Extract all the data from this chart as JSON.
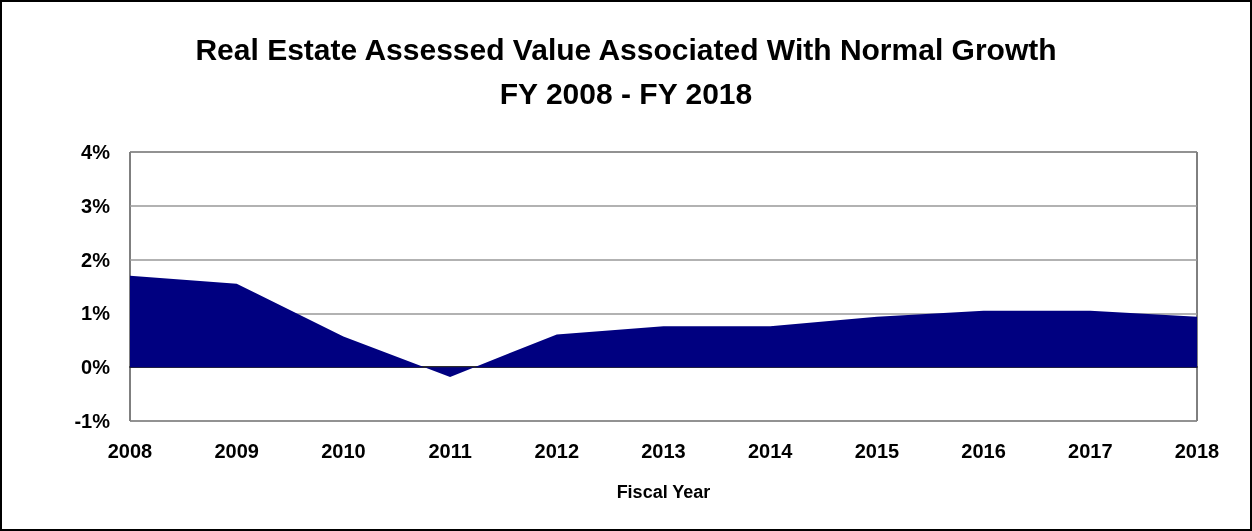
{
  "chart_data": {
    "type": "area",
    "title": "Real Estate Assessed Value Associated With Normal Growth\nFY 2008 - FY 2018",
    "xlabel": "Fiscal Year",
    "categories": [
      "2008",
      "2009",
      "2010",
      "2011",
      "2012",
      "2013",
      "2014",
      "2015",
      "2016",
      "2017",
      "2018"
    ],
    "series": [
      {
        "color": "#000080",
        "values": [
          1.7,
          1.55,
          0.57,
          -0.18,
          0.61,
          0.76,
          0.76,
          0.94,
          1.05,
          1.05,
          0.94
        ]
      }
    ],
    "ylim": [
      -1,
      4
    ],
    "yticks": [
      {
        "value": -1,
        "label": "-1%"
      },
      {
        "value": 0,
        "label": "0%"
      },
      {
        "value": 1,
        "label": "1%"
      },
      {
        "value": 2,
        "label": "2%"
      },
      {
        "value": 3,
        "label": "3%"
      },
      {
        "value": 4,
        "label": "4%"
      }
    ],
    "grid": "y"
  }
}
